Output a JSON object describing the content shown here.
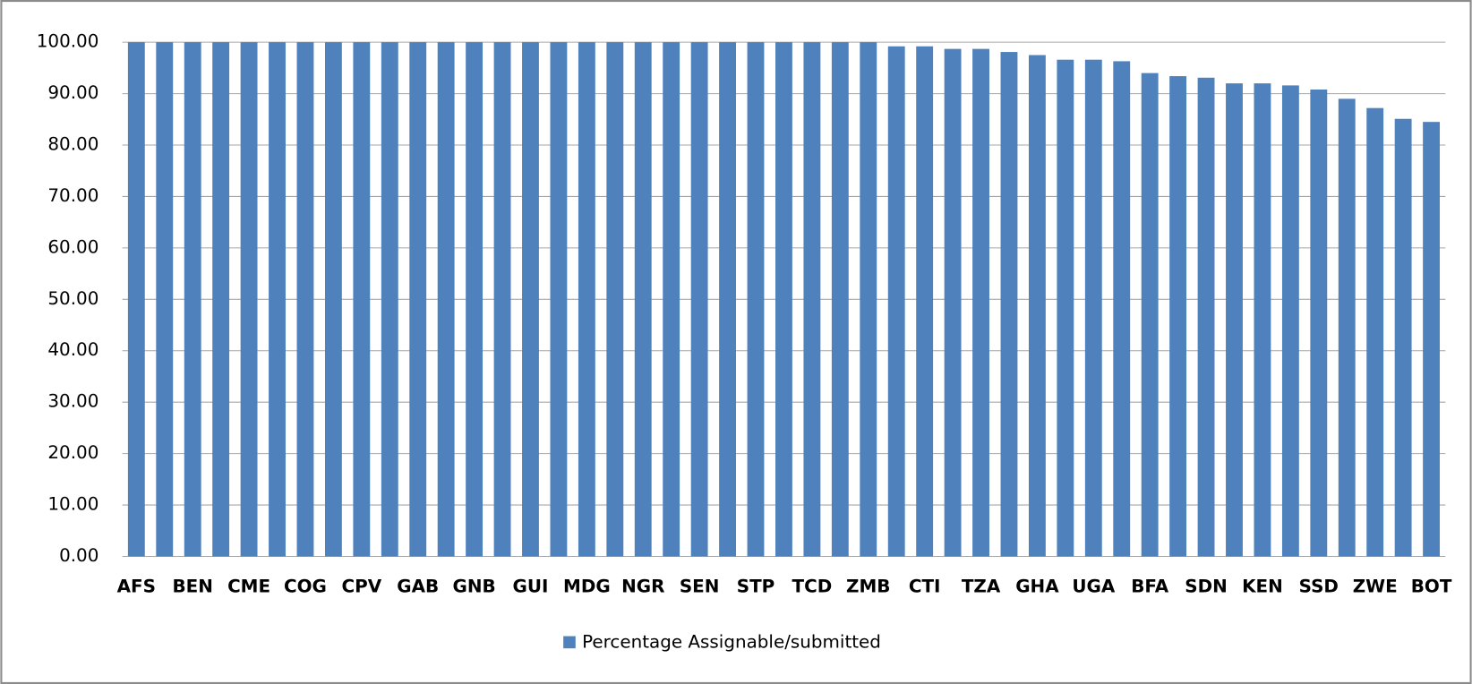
{
  "chart_data": {
    "type": "bar",
    "categories": [
      "AFS",
      null,
      "BEN",
      null,
      "CME",
      null,
      "COG",
      null,
      "CPV",
      null,
      "GAB",
      null,
      "GNB",
      null,
      "GUI",
      null,
      "MDG",
      null,
      "NGR",
      null,
      "SEN",
      null,
      "STP",
      null,
      "TCD",
      null,
      "ZMB",
      null,
      "CTI",
      null,
      "TZA",
      null,
      "GHA",
      null,
      "UGA",
      null,
      "BFA",
      null,
      "SDN",
      null,
      "KEN",
      null,
      "SSD",
      null,
      "ZWE",
      null,
      "BOT"
    ],
    "series": [
      {
        "name": "Percentage Assignable/submitted",
        "color": "#4f81bd",
        "values": [
          100,
          100,
          100,
          100,
          100,
          100,
          100,
          100,
          100,
          100,
          100,
          100,
          100,
          100,
          100,
          100,
          100,
          100,
          100,
          100,
          100,
          100,
          100,
          100,
          100,
          100,
          100,
          99.2,
          99.2,
          98.7,
          98.7,
          98.1,
          97.5,
          96.6,
          96.6,
          96.3,
          94,
          93.4,
          93.1,
          92,
          92,
          91.6,
          90.8,
          89,
          87.2,
          85.1,
          84.5
        ]
      }
    ],
    "ylim": [
      0,
      100
    ],
    "yticks": [
      {
        "value": 0,
        "label": "0.00"
      },
      {
        "value": 10,
        "label": "10.00"
      },
      {
        "value": 20,
        "label": "20.00"
      },
      {
        "value": 30,
        "label": "30.00"
      },
      {
        "value": 40,
        "label": "40.00"
      },
      {
        "value": 50,
        "label": "50.00"
      },
      {
        "value": 60,
        "label": "60.00"
      },
      {
        "value": 70,
        "label": "70.00"
      },
      {
        "value": 80,
        "label": "80.00"
      },
      {
        "value": 90,
        "label": "90.00"
      },
      {
        "value": 100,
        "label": "100.00"
      }
    ],
    "grid": true,
    "legend": "bottom"
  }
}
